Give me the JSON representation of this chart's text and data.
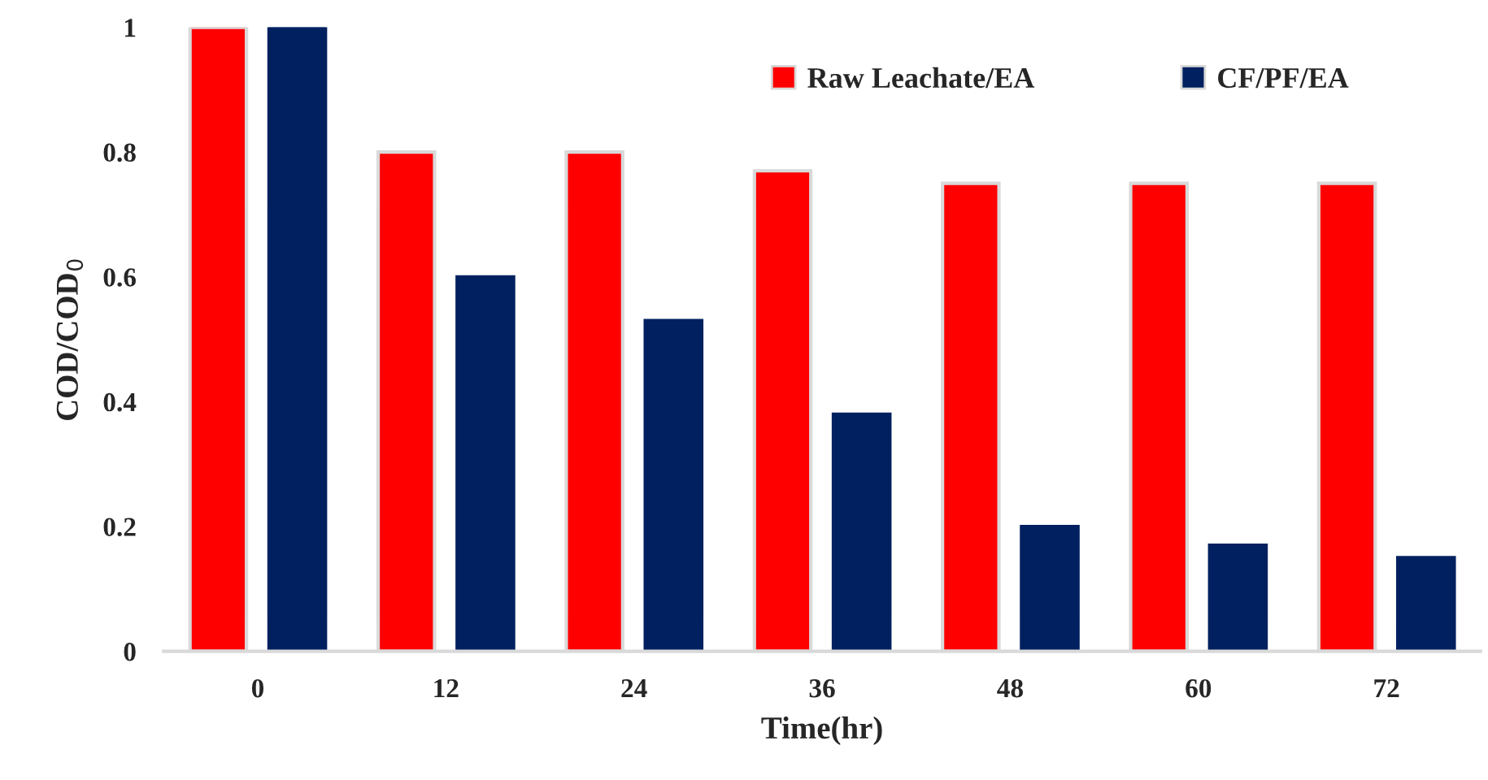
{
  "chart_data": {
    "type": "bar",
    "xlabel": "Time(hr)",
    "ylabel": "COD/COD$_{0}$",
    "categories": [
      "0",
      "12",
      "24",
      "36",
      "48",
      "60",
      "72"
    ],
    "series": [
      {
        "name": "Raw Leachate/EA",
        "color": "#ff0000",
        "values": [
          1,
          0.8,
          0.8,
          0.77,
          0.75,
          0.75,
          0.75
        ]
      },
      {
        "name": "CF/PF/EA",
        "color": "#002060",
        "values": [
          1,
          0.6,
          0.53,
          0.38,
          0.2,
          0.17,
          0.15
        ]
      }
    ],
    "ylim": [
      0,
      1
    ],
    "yticks": [
      0,
      0.2,
      0.4,
      0.6,
      0.8,
      1
    ],
    "grid": false,
    "legend": "top right"
  }
}
